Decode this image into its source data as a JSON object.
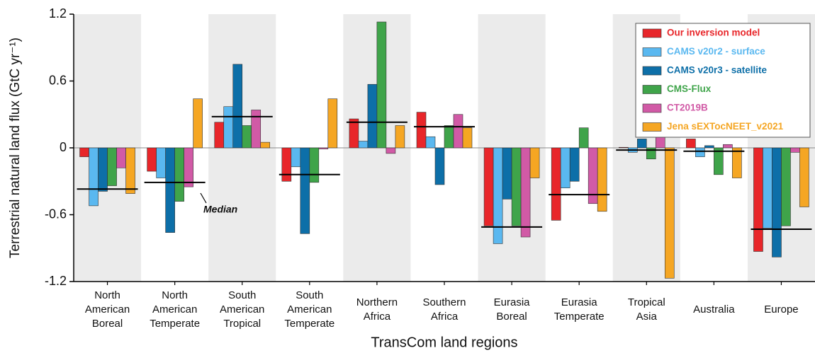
{
  "chart_data": {
    "type": "bar",
    "ylabel": "Terrestrial natural land flux (GtC yr⁻¹)",
    "xlabel": "TransCom land regions",
    "categories": [
      [
        "North",
        "American",
        "Boreal"
      ],
      [
        "North",
        "American",
        "Temperate"
      ],
      [
        "South",
        "American",
        "Tropical"
      ],
      [
        "South",
        "American",
        "Temperate"
      ],
      [
        "Northern",
        "Africa"
      ],
      [
        "Southern",
        "Africa"
      ],
      [
        "Eurasia",
        "Boreal"
      ],
      [
        "Eurasia",
        "Temperate"
      ],
      [
        "Tropical",
        "Asia"
      ],
      [
        "Australia"
      ],
      [
        "Europe"
      ]
    ],
    "series": [
      {
        "name": "Our inversion model",
        "color": "#e8262a",
        "values": [
          -0.08,
          -0.21,
          0.23,
          -0.3,
          0.26,
          0.32,
          -0.7,
          -0.65,
          0.005,
          0.08,
          -0.93
        ]
      },
      {
        "name": "CAMS v20r2 - surface",
        "color": "#5ab8f0",
        "values": [
          -0.52,
          -0.27,
          0.37,
          -0.17,
          0.06,
          0.1,
          -0.86,
          -0.36,
          -0.04,
          -0.08,
          -0.72
        ]
      },
      {
        "name": "CAMS v20r3 - satellite",
        "color": "#0d6fa8",
        "values": [
          -0.39,
          -0.76,
          0.75,
          -0.77,
          0.57,
          -0.33,
          -0.46,
          -0.3,
          0.08,
          0.02,
          -0.98
        ]
      },
      {
        "name": "CMS-Flux",
        "color": "#3fa44a",
        "values": [
          -0.34,
          -0.48,
          0.2,
          -0.31,
          1.13,
          0.2,
          -0.7,
          0.18,
          -0.1,
          -0.24,
          -0.7
        ]
      },
      {
        "name": "CT2019B",
        "color": "#d15aa6",
        "values": [
          -0.18,
          -0.35,
          0.34,
          -0.01,
          -0.05,
          0.3,
          -0.8,
          -0.5,
          0.18,
          0.03,
          -0.04
        ]
      },
      {
        "name": "Jena sEXTocNEET_v2021",
        "color": "#f5a623",
        "values": [
          -0.41,
          0.44,
          0.05,
          0.44,
          0.2,
          0.18,
          -0.27,
          -0.57,
          -1.17,
          -0.27,
          -0.53
        ]
      }
    ],
    "median": {
      "label": "Median",
      "values": [
        -0.37,
        -0.31,
        0.28,
        -0.24,
        0.23,
        0.19,
        -0.71,
        -0.42,
        -0.02,
        -0.03,
        -0.73
      ]
    },
    "ylim": [
      -1.2,
      1.2
    ],
    "yticks": [
      -1.2,
      -0.6,
      0,
      0.6,
      1.2
    ],
    "legend": "upper-right",
    "shading": "#ebebeb"
  }
}
